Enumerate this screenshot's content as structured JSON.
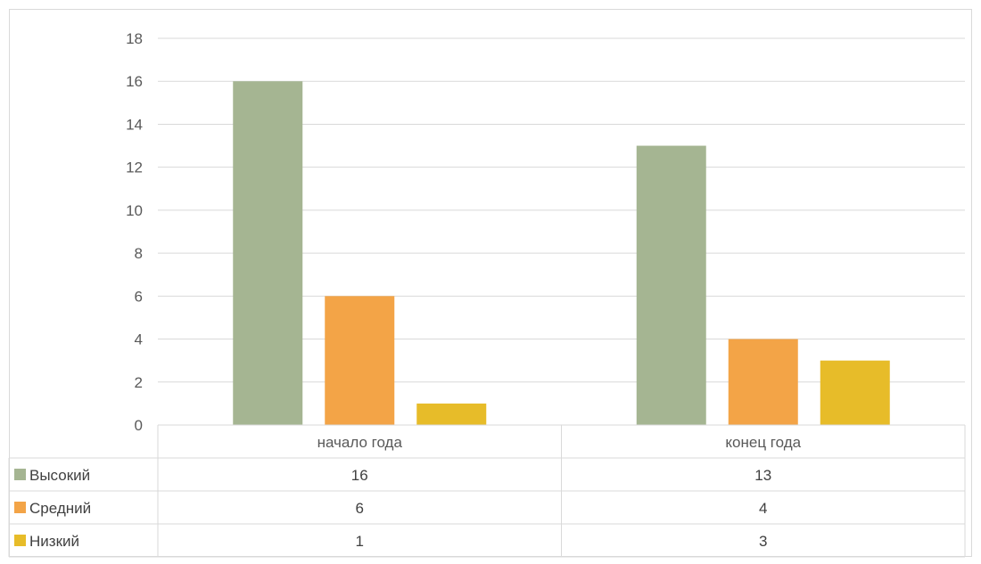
{
  "chart_data": {
    "type": "bar",
    "categories": [
      "начало года",
      "конец года"
    ],
    "series": [
      {
        "name": "Высокий",
        "values": [
          16,
          13
        ],
        "color": "#a5b592"
      },
      {
        "name": "Средний",
        "values": [
          6,
          4
        ],
        "color": "#f3a447"
      },
      {
        "name": "Низкий",
        "values": [
          1,
          3
        ],
        "color": "#e7bc29"
      }
    ],
    "ylim": [
      0,
      18
    ],
    "yticks": [
      0,
      2,
      4,
      6,
      8,
      10,
      12,
      14,
      16,
      18
    ],
    "grid": true,
    "legend": "data-table",
    "title": "",
    "xlabel": "",
    "ylabel": ""
  }
}
